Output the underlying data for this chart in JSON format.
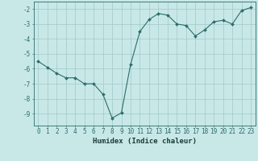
{
  "x": [
    0,
    1,
    2,
    3,
    4,
    5,
    6,
    7,
    8,
    9,
    10,
    11,
    12,
    13,
    14,
    15,
    16,
    17,
    18,
    19,
    20,
    21,
    22,
    23
  ],
  "y": [
    -5.5,
    -5.9,
    -6.3,
    -6.6,
    -6.6,
    -7.0,
    -7.0,
    -7.7,
    -9.3,
    -8.95,
    -5.7,
    -3.5,
    -2.7,
    -2.3,
    -2.4,
    -3.0,
    -3.1,
    -3.8,
    -3.4,
    -2.85,
    -2.75,
    -3.0,
    -2.1,
    -1.9
  ],
  "line_color": "#2e6b6b",
  "marker": "D",
  "marker_size": 2.0,
  "bg_color": "#c8e8e8",
  "grid_color_major": "#a0c8c8",
  "grid_color_minor": "#b8dcdc",
  "tick_color": "#2e6b6b",
  "xlabel": "Humidex (Indice chaleur)",
  "xlim": [
    -0.5,
    23.5
  ],
  "ylim": [
    -9.8,
    -1.5
  ],
  "yticks": [
    -9,
    -8,
    -7,
    -6,
    -5,
    -4,
    -3,
    -2
  ],
  "xticks": [
    0,
    1,
    2,
    3,
    4,
    5,
    6,
    7,
    8,
    9,
    10,
    11,
    12,
    13,
    14,
    15,
    16,
    17,
    18,
    19,
    20,
    21,
    22,
    23
  ],
  "font_color": "#1a3a3a",
  "tick_fontsize": 5.5,
  "xlabel_fontsize": 6.5
}
